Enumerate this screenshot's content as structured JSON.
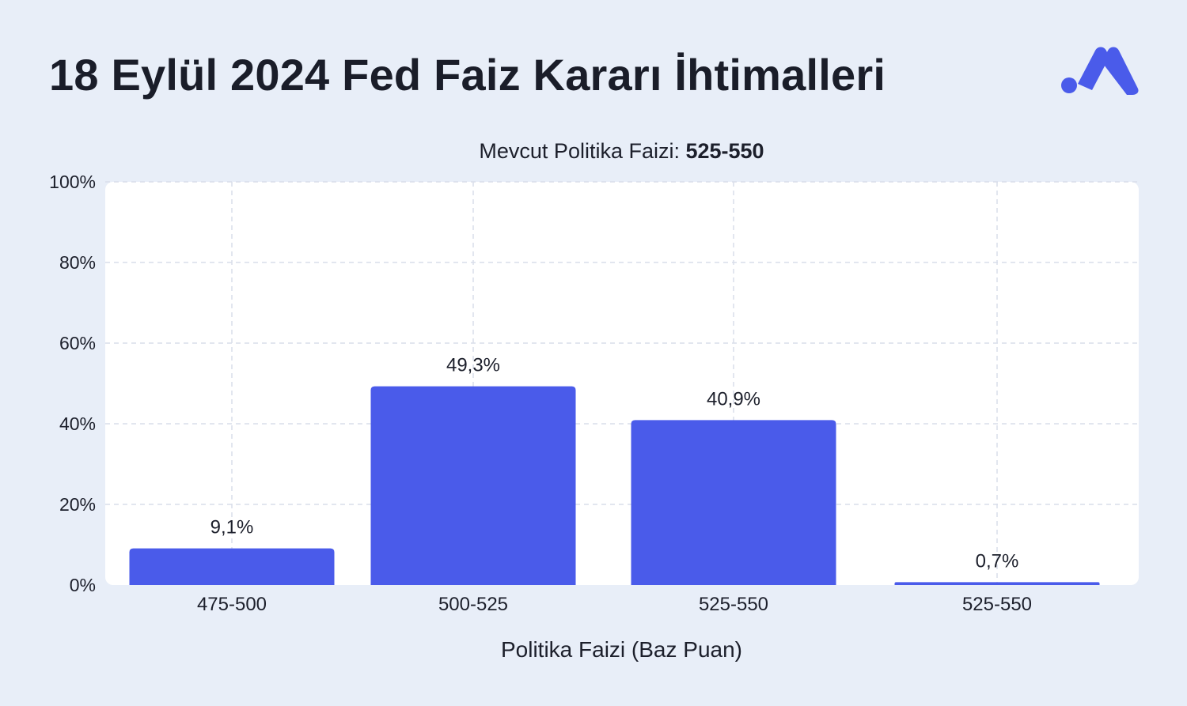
{
  "title": "18 Eylül 2024 Fed Faiz Kararı İhtimalleri",
  "logo": {
    "icon": "brand-m-icon",
    "color": "#4a5bea"
  },
  "colors": {
    "bar": "#4a5bea",
    "background": "#e8eef8",
    "plot": "#ffffff",
    "grid": "#d9deea"
  },
  "chart_data": {
    "type": "bar",
    "title": "18 Eylül 2024 Fed Faiz Kararı İhtimalleri",
    "subtitle_prefix": "Mevcut Politika Faizi: ",
    "subtitle_value": "525-550",
    "xlabel": "Politika Faizi (Baz Puan)",
    "ylabel": "",
    "categories": [
      "475-500",
      "500-525",
      "525-550",
      "525-550"
    ],
    "values": [
      9.1,
      49.3,
      40.9,
      0.7
    ],
    "value_labels": [
      "9,1%",
      "49,3%",
      "40,9%",
      "0,7%"
    ],
    "ylim": [
      0,
      100
    ],
    "yticks": [
      0,
      20,
      40,
      60,
      80,
      100
    ],
    "ytick_labels": [
      "0%",
      "20%",
      "40%",
      "60%",
      "80%",
      "100%"
    ],
    "grid": true,
    "legend": "none"
  }
}
